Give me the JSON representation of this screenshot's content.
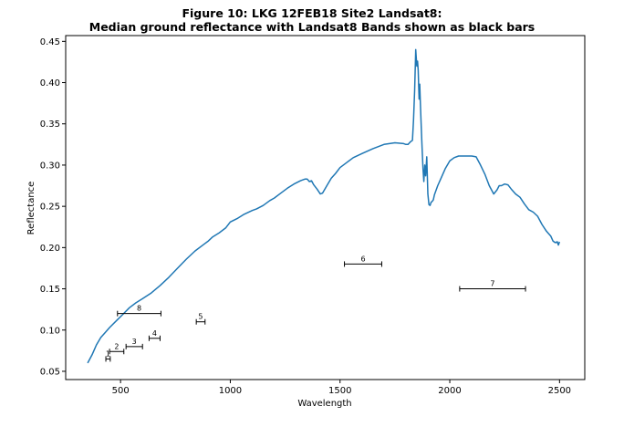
{
  "chart_data": {
    "type": "line",
    "title_line1": "Figure 10: LKG 12FEB18 Site2 Landsat8:",
    "title_line2": "Median ground reflectance with Landsat8 Bands shown as black bars",
    "xlabel": "Wavelength",
    "ylabel": "Reflectance",
    "xlim": [
      250,
      2615
    ],
    "ylim": [
      0.04,
      0.457
    ],
    "grid": false,
    "xticks": [
      500,
      1000,
      1500,
      2000,
      2500
    ],
    "yticks": [
      0.05,
      0.1,
      0.15,
      0.2,
      0.25,
      0.3,
      0.35,
      0.4,
      0.45
    ],
    "series": [
      {
        "color": "#1f77b4",
        "x": [
          350,
          370,
          390,
          410,
          430,
          450,
          480,
          510,
          540,
          570,
          600,
          640,
          680,
          720,
          760,
          800,
          840,
          880,
          900,
          920,
          950,
          980,
          1000,
          1030,
          1060,
          1100,
          1120,
          1150,
          1180,
          1200,
          1230,
          1260,
          1290,
          1320,
          1340,
          1350,
          1360,
          1370,
          1380,
          1395,
          1410,
          1420,
          1440,
          1460,
          1480,
          1500,
          1530,
          1560,
          1600,
          1650,
          1700,
          1750,
          1790,
          1800,
          1810,
          1820,
          1825,
          1830,
          1835,
          1840,
          1845,
          1850,
          1853,
          1856,
          1860,
          1863,
          1866,
          1870,
          1874,
          1878,
          1882,
          1886,
          1890,
          1895,
          1900,
          1905,
          1910,
          1915,
          1920,
          1925,
          1930,
          1945,
          1960,
          1980,
          2000,
          2020,
          2040,
          2060,
          2080,
          2100,
          2120,
          2140,
          2160,
          2180,
          2200,
          2215,
          2225,
          2235,
          2250,
          2265,
          2280,
          2300,
          2320,
          2340,
          2360,
          2380,
          2400,
          2420,
          2440,
          2460,
          2470,
          2480,
          2490,
          2495,
          2500
        ],
        "values": [
          0.06,
          0.07,
          0.082,
          0.091,
          0.097,
          0.103,
          0.111,
          0.119,
          0.127,
          0.133,
          0.138,
          0.145,
          0.154,
          0.164,
          0.175,
          0.186,
          0.196,
          0.204,
          0.208,
          0.213,
          0.218,
          0.224,
          0.231,
          0.235,
          0.24,
          0.245,
          0.247,
          0.251,
          0.257,
          0.26,
          0.266,
          0.272,
          0.277,
          0.281,
          0.283,
          0.283,
          0.28,
          0.281,
          0.276,
          0.271,
          0.265,
          0.266,
          0.275,
          0.284,
          0.29,
          0.297,
          0.303,
          0.309,
          0.314,
          0.32,
          0.325,
          0.327,
          0.326,
          0.325,
          0.325,
          0.328,
          0.329,
          0.33,
          0.355,
          0.39,
          0.44,
          0.42,
          0.426,
          0.415,
          0.38,
          0.398,
          0.375,
          0.345,
          0.32,
          0.295,
          0.28,
          0.3,
          0.287,
          0.31,
          0.265,
          0.252,
          0.251,
          0.255,
          0.256,
          0.258,
          0.264,
          0.275,
          0.284,
          0.296,
          0.305,
          0.309,
          0.311,
          0.311,
          0.311,
          0.311,
          0.31,
          0.3,
          0.289,
          0.275,
          0.265,
          0.27,
          0.275,
          0.275,
          0.277,
          0.276,
          0.271,
          0.265,
          0.261,
          0.253,
          0.246,
          0.243,
          0.238,
          0.228,
          0.22,
          0.214,
          0.208,
          0.206,
          0.207,
          0.203,
          0.207
        ]
      }
    ],
    "bands": [
      {
        "label": "1",
        "xmin": 433,
        "xmax": 453,
        "y": 0.065
      },
      {
        "label": "2",
        "xmin": 450,
        "xmax": 515,
        "y": 0.074
      },
      {
        "label": "3",
        "xmin": 525,
        "xmax": 600,
        "y": 0.08
      },
      {
        "label": "4",
        "xmin": 630,
        "xmax": 680,
        "y": 0.09
      },
      {
        "label": "5",
        "xmin": 845,
        "xmax": 885,
        "y": 0.11
      },
      {
        "label": "6",
        "xmin": 1520,
        "xmax": 1690,
        "y": 0.18
      },
      {
        "label": "7",
        "xmin": 2045,
        "xmax": 2345,
        "y": 0.15
      },
      {
        "label": "8",
        "xmin": 486,
        "xmax": 684,
        "y": 0.12
      }
    ]
  }
}
